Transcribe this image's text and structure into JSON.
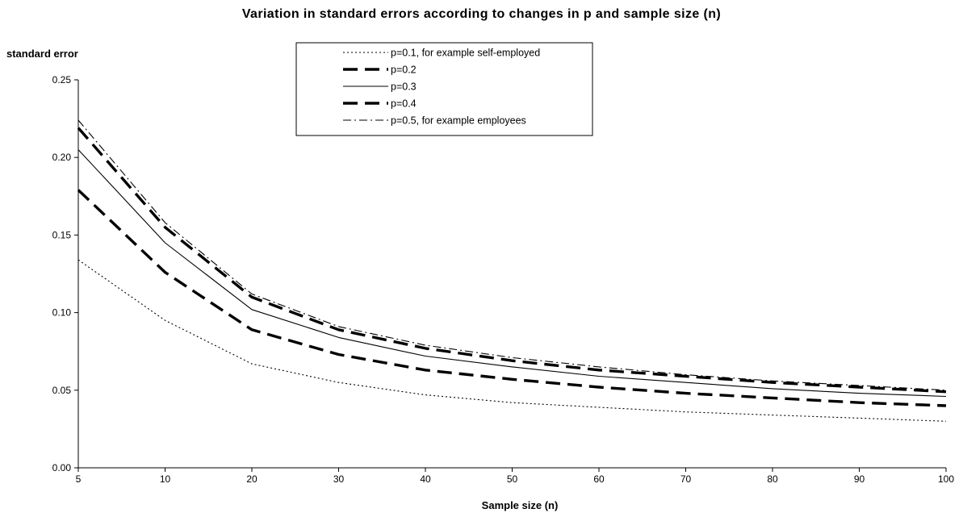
{
  "chart_data": {
    "type": "line",
    "title": "Variation in standard errors according to changes in p and sample size (n)",
    "xlabel": "Sample size (n)",
    "ylabel": "standard error",
    "categories": [
      "5",
      "10",
      "20",
      "30",
      "40",
      "50",
      "60",
      "70",
      "80",
      "90",
      "100"
    ],
    "ylim": [
      0,
      0.25
    ],
    "yticks": [
      "0.00",
      "0.05",
      "0.10",
      "0.15",
      "0.20",
      "0.25"
    ],
    "grid": false,
    "legend_position": "top-center",
    "series": [
      {
        "name": "p=0.1, for example self-employed",
        "style": "dotted",
        "values": [
          0.134,
          0.095,
          0.067,
          0.055,
          0.047,
          0.042,
          0.039,
          0.036,
          0.034,
          0.032,
          0.03
        ]
      },
      {
        "name": "p=0.2",
        "style": "thick-dash",
        "values": [
          0.179,
          0.126,
          0.089,
          0.073,
          0.063,
          0.057,
          0.052,
          0.048,
          0.045,
          0.042,
          0.04
        ]
      },
      {
        "name": "p=0.3",
        "style": "solid",
        "values": [
          0.205,
          0.145,
          0.102,
          0.084,
          0.072,
          0.065,
          0.059,
          0.055,
          0.051,
          0.048,
          0.046
        ]
      },
      {
        "name": "p=0.4",
        "style": "thick-dash",
        "values": [
          0.219,
          0.155,
          0.11,
          0.089,
          0.077,
          0.069,
          0.063,
          0.059,
          0.055,
          0.052,
          0.049
        ]
      },
      {
        "name": "p=0.5, for example employees",
        "style": "dash-dot",
        "values": [
          0.224,
          0.158,
          0.112,
          0.091,
          0.079,
          0.071,
          0.065,
          0.06,
          0.056,
          0.053,
          0.05
        ]
      }
    ],
    "colors": {
      "line": "#000000",
      "background": "#ffffff"
    }
  }
}
